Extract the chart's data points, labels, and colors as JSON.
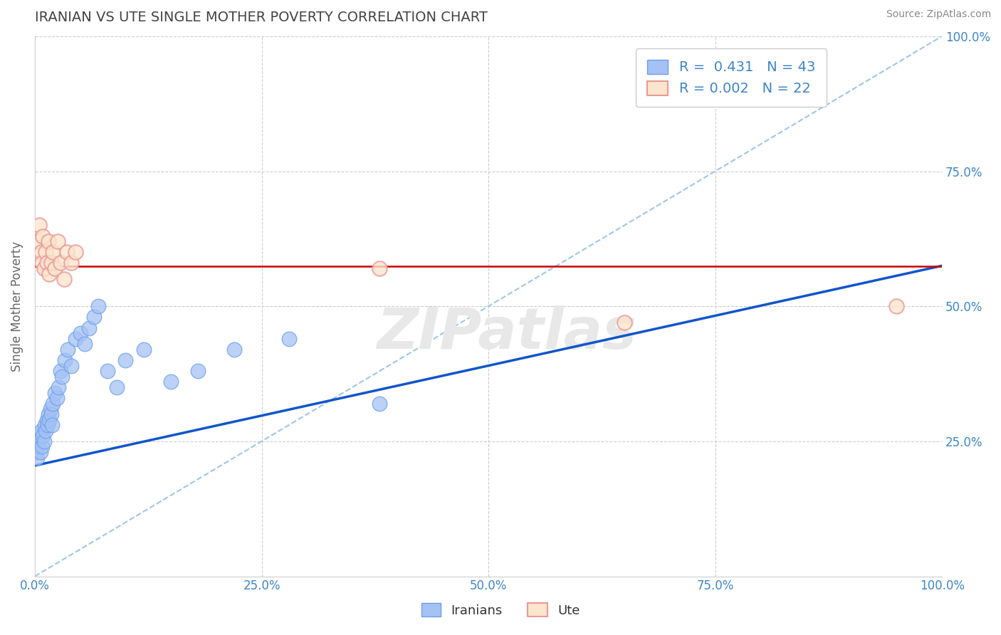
{
  "title": "IRANIAN VS UTE SINGLE MOTHER POVERTY CORRELATION CHART",
  "source_text": "Source: ZipAtlas.com",
  "ylabel": "Single Mother Poverty",
  "xlim": [
    0.0,
    1.0
  ],
  "ylim": [
    0.0,
    1.0
  ],
  "xticks": [
    0.0,
    0.25,
    0.5,
    0.75,
    1.0
  ],
  "xticklabels": [
    "0.0%",
    "25.0%",
    "50.0%",
    "75.0%",
    "100.0%"
  ],
  "yticks": [
    0.25,
    0.5,
    0.75,
    1.0
  ],
  "yticklabels": [
    "25.0%",
    "50.0%",
    "75.0%",
    "100.0%"
  ],
  "legend_R_blue": "0.431",
  "legend_N_blue": "43",
  "legend_R_pink": "0.002",
  "legend_N_pink": "22",
  "legend_label_blue": "Iranians",
  "legend_label_pink": "Ute",
  "blue_color": "#a4c2f4",
  "blue_edge_color": "#6d9eeb",
  "pink_color": "#ea9999",
  "pink_fill_color": "#fce5cd",
  "line_blue_color": "#1155cc",
  "line_pink_color": "#cc0000",
  "diag_line_color": "#9fc5e8",
  "title_color": "#434343",
  "axis_label_color": "#666666",
  "tick_color": "#3d85c8",
  "grid_color": "#cccccc",
  "watermark_color": "#e8e8e8",
  "blue_dots_x": [
    0.001,
    0.002,
    0.003,
    0.004,
    0.005,
    0.006,
    0.007,
    0.008,
    0.009,
    0.01,
    0.011,
    0.012,
    0.013,
    0.014,
    0.015,
    0.016,
    0.017,
    0.018,
    0.019,
    0.02,
    0.022,
    0.024,
    0.026,
    0.028,
    0.03,
    0.033,
    0.036,
    0.04,
    0.045,
    0.05,
    0.055,
    0.06,
    0.065,
    0.07,
    0.08,
    0.09,
    0.1,
    0.12,
    0.15,
    0.18,
    0.22,
    0.28,
    0.38
  ],
  "blue_dots_y": [
    0.23,
    0.22,
    0.25,
    0.24,
    0.26,
    0.23,
    0.27,
    0.24,
    0.26,
    0.25,
    0.28,
    0.27,
    0.29,
    0.28,
    0.3,
    0.29,
    0.31,
    0.3,
    0.28,
    0.32,
    0.34,
    0.33,
    0.35,
    0.38,
    0.37,
    0.4,
    0.42,
    0.39,
    0.44,
    0.45,
    0.43,
    0.46,
    0.48,
    0.5,
    0.38,
    0.35,
    0.4,
    0.42,
    0.36,
    0.38,
    0.42,
    0.44,
    0.32
  ],
  "pink_dots_x": [
    0.003,
    0.005,
    0.007,
    0.008,
    0.009,
    0.01,
    0.012,
    0.013,
    0.015,
    0.016,
    0.018,
    0.02,
    0.022,
    0.025,
    0.028,
    0.032,
    0.035,
    0.04,
    0.045,
    0.38,
    0.65,
    0.95
  ],
  "pink_dots_y": [
    0.62,
    0.65,
    0.6,
    0.58,
    0.63,
    0.57,
    0.6,
    0.58,
    0.62,
    0.56,
    0.58,
    0.6,
    0.57,
    0.62,
    0.58,
    0.55,
    0.6,
    0.58,
    0.6,
    0.57,
    0.47,
    0.5
  ],
  "pink_hline_y": 0.574,
  "blue_line_x0": 0.0,
  "blue_line_y0": 0.205,
  "blue_line_x1": 1.0,
  "blue_line_y1": 0.575
}
